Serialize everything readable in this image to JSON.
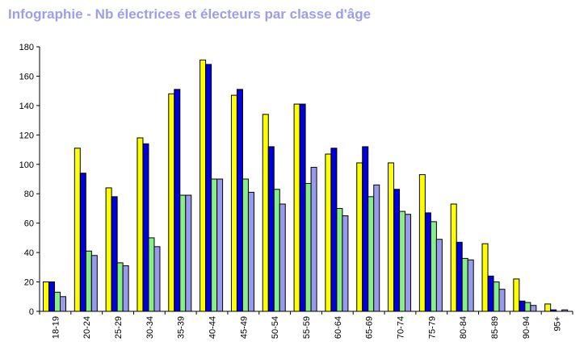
{
  "title": "Infographie - Nb électrices et électeurs par classe d'âge",
  "colors": {
    "title": "#9d9dec",
    "axis": "#000000"
  },
  "chart_data": {
    "type": "bar",
    "title": "Infographie - Nb électrices et électeurs par classe d'âge",
    "xlabel": "",
    "ylabel": "",
    "ylim": [
      0,
      180
    ],
    "yticks": [
      0,
      20,
      40,
      60,
      80,
      100,
      120,
      140,
      160,
      180
    ],
    "grid": false,
    "legend": "none",
    "categories": [
      "18-19",
      "20-24",
      "25-29",
      "30-34",
      "35-39",
      "40-44",
      "45-49",
      "50-54",
      "55-59",
      "60-64",
      "65-69",
      "70-74",
      "75-79",
      "80-84",
      "85-89",
      "90-94",
      "95+"
    ],
    "series": [
      {
        "color": "#ffff00",
        "values": [
          20,
          111,
          84,
          118,
          148,
          171,
          147,
          134,
          141,
          107,
          101,
          101,
          93,
          73,
          46,
          22,
          5
        ]
      },
      {
        "color": "#0000dd",
        "values": [
          20,
          94,
          78,
          114,
          151,
          168,
          151,
          112,
          141,
          111,
          112,
          83,
          67,
          47,
          24,
          7,
          1
        ]
      },
      {
        "color": "#88ee88",
        "values": [
          13,
          41,
          33,
          50,
          79,
          90,
          90,
          83,
          87,
          70,
          78,
          68,
          61,
          36,
          20,
          6,
          0
        ]
      },
      {
        "color": "#9999ee",
        "values": [
          10,
          38,
          31,
          44,
          79,
          90,
          81,
          73,
          98,
          65,
          86,
          66,
          49,
          35,
          15,
          4,
          1
        ]
      }
    ]
  }
}
